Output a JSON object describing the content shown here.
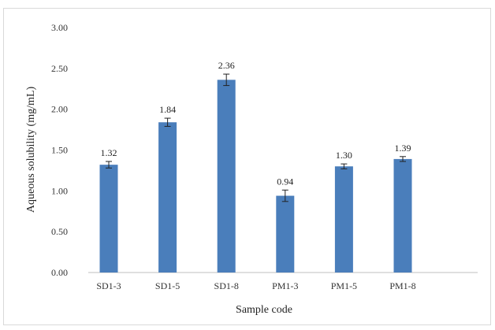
{
  "chart_data": {
    "type": "bar",
    "title": "",
    "xlabel": "Sample code",
    "ylabel": "Aqueous solubility (mg/mL)",
    "categories": [
      "SD1-3",
      "SD1-5",
      "SD1-8",
      "PM1-3",
      "PM1-5",
      "PM1-8"
    ],
    "values": [
      1.32,
      1.84,
      2.36,
      0.94,
      1.3,
      1.39
    ],
    "value_labels": [
      "1.32",
      "1.84",
      "2.36",
      "0.94",
      "1.30",
      "1.39"
    ],
    "errors": [
      0.04,
      0.05,
      0.07,
      0.07,
      0.03,
      0.03
    ],
    "ylim": [
      0,
      3
    ],
    "yticks": [
      0,
      0.5,
      1.0,
      1.5,
      2.0,
      2.5,
      3.0
    ],
    "ytick_labels": [
      "0.00",
      "0.50",
      "1.00",
      "1.50",
      "2.00",
      "2.50",
      "3.00"
    ],
    "grid": false,
    "bar_color": "#4a7ebb",
    "error_color": "#222222"
  }
}
